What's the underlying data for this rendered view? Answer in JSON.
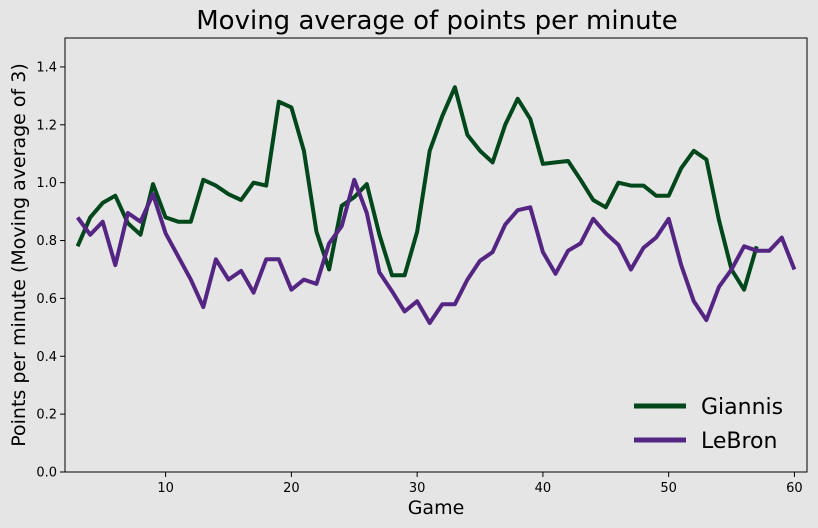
{
  "chart_data": {
    "type": "line",
    "title": "Moving average of points per minute",
    "xlabel": "Game",
    "ylabel": "Points per minute (Moving average of 3)",
    "xlim": [
      2,
      61
    ],
    "ylim": [
      0,
      1.5
    ],
    "xticks": [
      10,
      20,
      30,
      40,
      50,
      60
    ],
    "yticks": [
      0.0,
      0.2,
      0.4,
      0.6,
      0.8,
      1.0,
      1.2,
      1.4
    ],
    "legend_position": "lower-right",
    "grid": false,
    "series": [
      {
        "name": "Giannis",
        "color": "#00471b",
        "x": [
          3,
          4,
          5,
          6,
          7,
          8,
          9,
          10,
          11,
          12,
          13,
          14,
          15,
          16,
          17,
          18,
          19,
          20,
          21,
          22,
          23,
          24,
          25,
          26,
          27,
          28,
          29,
          30,
          31,
          32,
          33,
          34,
          35,
          36,
          37,
          38,
          39,
          40,
          41,
          42,
          43,
          44,
          45,
          46,
          47,
          48,
          49,
          50,
          51,
          52,
          53,
          54,
          55,
          56,
          57
        ],
        "y": [
          0.78,
          0.88,
          0.93,
          0.955,
          0.86,
          0.82,
          0.995,
          0.88,
          0.865,
          0.865,
          1.01,
          0.99,
          0.96,
          0.94,
          1.0,
          0.99,
          1.28,
          1.26,
          1.11,
          0.83,
          0.7,
          0.92,
          0.95,
          0.995,
          0.82,
          0.68,
          0.68,
          0.83,
          1.11,
          1.23,
          1.33,
          1.165,
          1.11,
          1.07,
          1.2,
          1.29,
          1.22,
          1.065,
          1.07,
          1.075,
          1.01,
          0.94,
          0.915,
          1.0,
          0.99,
          0.99,
          0.955,
          0.955,
          1.05,
          1.11,
          1.08,
          0.87,
          0.7,
          0.63,
          0.78
        ]
      },
      {
        "name": "LeBron",
        "color": "#552583",
        "x": [
          3,
          4,
          5,
          6,
          7,
          8,
          9,
          10,
          11,
          12,
          13,
          14,
          15,
          16,
          17,
          18,
          19,
          20,
          21,
          22,
          23,
          24,
          25,
          26,
          27,
          28,
          29,
          30,
          31,
          32,
          33,
          34,
          35,
          36,
          37,
          38,
          39,
          40,
          41,
          42,
          43,
          44,
          45,
          46,
          47,
          48,
          49,
          50,
          51,
          52,
          53,
          54,
          55,
          56,
          57,
          58,
          59,
          60
        ],
        "y": [
          0.88,
          0.82,
          0.865,
          0.715,
          0.895,
          0.865,
          0.96,
          0.825,
          0.745,
          0.665,
          0.57,
          0.735,
          0.665,
          0.695,
          0.62,
          0.735,
          0.735,
          0.63,
          0.665,
          0.65,
          0.79,
          0.85,
          1.01,
          0.895,
          0.69,
          0.625,
          0.555,
          0.59,
          0.515,
          0.58,
          0.58,
          0.665,
          0.73,
          0.76,
          0.855,
          0.905,
          0.915,
          0.76,
          0.685,
          0.765,
          0.79,
          0.875,
          0.825,
          0.785,
          0.7,
          0.775,
          0.81,
          0.875,
          0.715,
          0.59,
          0.525,
          0.64,
          0.7,
          0.78,
          0.765,
          0.765,
          0.81,
          0.7
        ]
      }
    ]
  }
}
